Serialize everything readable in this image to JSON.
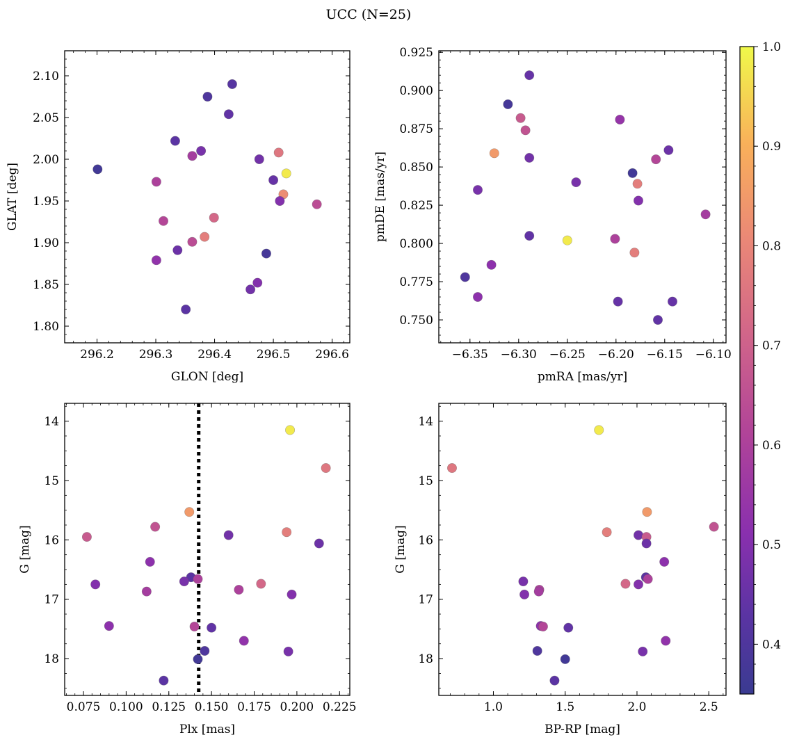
{
  "figure": {
    "suptitle": "UCC (N=25)"
  },
  "colorbar": {
    "min": 0.35,
    "max": 1.0,
    "colormap": "plasma",
    "ticks": [
      0.4,
      0.5,
      0.6,
      0.7,
      0.8,
      0.9,
      1.0
    ],
    "tick_labels": [
      "0.4",
      "0.5",
      "0.6",
      "0.7",
      "0.8",
      "0.9",
      "1.0"
    ]
  },
  "chart_data": [
    {
      "type": "scatter",
      "xlabel": "GLON [deg]",
      "ylabel": "GLAT [deg]",
      "xlim": [
        296.145,
        296.63
      ],
      "ylim": [
        1.78,
        2.13
      ],
      "y_inverted": false,
      "xticks": [
        296.2,
        296.3,
        296.4,
        296.5,
        296.6
      ],
      "xtick_labels": [
        "296.2",
        "296.3",
        "296.4",
        "296.5",
        "296.6"
      ],
      "yticks": [
        1.8,
        1.85,
        1.9,
        1.95,
        2.0,
        2.05,
        2.1
      ],
      "ytick_labels": [
        "1.80",
        "1.85",
        "1.90",
        "1.95",
        "2.00",
        "2.05",
        "2.10"
      ],
      "points": [
        {
          "x": 296.201,
          "y": 1.988,
          "c": 0.37
        },
        {
          "x": 296.388,
          "y": 2.075,
          "c": 0.4
        },
        {
          "x": 296.43,
          "y": 2.09,
          "c": 0.42
        },
        {
          "x": 296.424,
          "y": 2.054,
          "c": 0.44
        },
        {
          "x": 296.333,
          "y": 2.022,
          "c": 0.43
        },
        {
          "x": 296.377,
          "y": 2.01,
          "c": 0.48
        },
        {
          "x": 296.362,
          "y": 2.004,
          "c": 0.58
        },
        {
          "x": 296.476,
          "y": 2.0,
          "c": 0.47
        },
        {
          "x": 296.509,
          "y": 2.008,
          "c": 0.76
        },
        {
          "x": 296.522,
          "y": 1.983,
          "c": 0.98
        },
        {
          "x": 296.5,
          "y": 1.975,
          "c": 0.45
        },
        {
          "x": 296.517,
          "y": 1.958,
          "c": 0.82
        },
        {
          "x": 296.511,
          "y": 1.95,
          "c": 0.5
        },
        {
          "x": 296.574,
          "y": 1.946,
          "c": 0.64
        },
        {
          "x": 296.301,
          "y": 1.973,
          "c": 0.6
        },
        {
          "x": 296.399,
          "y": 1.93,
          "c": 0.72
        },
        {
          "x": 296.313,
          "y": 1.926,
          "c": 0.62
        },
        {
          "x": 296.383,
          "y": 1.907,
          "c": 0.78
        },
        {
          "x": 296.362,
          "y": 1.901,
          "c": 0.64
        },
        {
          "x": 296.337,
          "y": 1.891,
          "c": 0.46
        },
        {
          "x": 296.301,
          "y": 1.879,
          "c": 0.53
        },
        {
          "x": 296.488,
          "y": 1.887,
          "c": 0.38
        },
        {
          "x": 296.473,
          "y": 1.852,
          "c": 0.5
        },
        {
          "x": 296.461,
          "y": 1.844,
          "c": 0.47
        },
        {
          "x": 296.351,
          "y": 1.82,
          "c": 0.43
        }
      ]
    },
    {
      "type": "scatter",
      "xlabel": "pmRA [mas/yr]",
      "ylabel": "pmDE [mas/yr]",
      "xlim": [
        -6.382,
        -6.087
      ],
      "ylim": [
        0.735,
        0.926
      ],
      "y_inverted": false,
      "xticks": [
        -6.35,
        -6.3,
        -6.25,
        -6.2,
        -6.15,
        -6.1
      ],
      "xtick_labels": [
        "−6.35",
        "−6.30",
        "−6.25",
        "−6.20",
        "−6.15",
        "−6.10"
      ],
      "yticks": [
        0.75,
        0.775,
        0.8,
        0.825,
        0.85,
        0.875,
        0.9,
        0.925
      ],
      "ytick_labels": [
        "0.750",
        "0.775",
        "0.800",
        "0.825",
        "0.850",
        "0.875",
        "0.900",
        "0.925"
      ],
      "points": [
        {
          "x": -6.289,
          "y": 0.91,
          "c": 0.45
        },
        {
          "x": -6.311,
          "y": 0.891,
          "c": 0.38
        },
        {
          "x": -6.298,
          "y": 0.882,
          "c": 0.68
        },
        {
          "x": -6.293,
          "y": 0.874,
          "c": 0.66
        },
        {
          "x": -6.196,
          "y": 0.881,
          "c": 0.54
        },
        {
          "x": -6.325,
          "y": 0.859,
          "c": 0.85
        },
        {
          "x": -6.289,
          "y": 0.856,
          "c": 0.47
        },
        {
          "x": -6.146,
          "y": 0.861,
          "c": 0.46
        },
        {
          "x": -6.159,
          "y": 0.855,
          "c": 0.62
        },
        {
          "x": -6.183,
          "y": 0.846,
          "c": 0.37
        },
        {
          "x": -6.241,
          "y": 0.84,
          "c": 0.48
        },
        {
          "x": -6.178,
          "y": 0.839,
          "c": 0.78
        },
        {
          "x": -6.342,
          "y": 0.835,
          "c": 0.48
        },
        {
          "x": -6.177,
          "y": 0.828,
          "c": 0.5
        },
        {
          "x": -6.108,
          "y": 0.819,
          "c": 0.58
        },
        {
          "x": -6.289,
          "y": 0.805,
          "c": 0.44
        },
        {
          "x": -6.25,
          "y": 0.802,
          "c": 0.98
        },
        {
          "x": -6.201,
          "y": 0.803,
          "c": 0.6
        },
        {
          "x": -6.181,
          "y": 0.794,
          "c": 0.78
        },
        {
          "x": -6.328,
          "y": 0.786,
          "c": 0.52
        },
        {
          "x": -6.355,
          "y": 0.778,
          "c": 0.4
        },
        {
          "x": -6.342,
          "y": 0.765,
          "c": 0.52
        },
        {
          "x": -6.198,
          "y": 0.762,
          "c": 0.45
        },
        {
          "x": -6.142,
          "y": 0.762,
          "c": 0.45
        },
        {
          "x": -6.157,
          "y": 0.75,
          "c": 0.44
        }
      ]
    },
    {
      "type": "scatter",
      "xlabel": "Plx [mas]",
      "ylabel": "G [mag]",
      "xlim": [
        0.064,
        0.231
      ],
      "ylim": [
        13.7,
        18.62
      ],
      "y_inverted": true,
      "xticks": [
        0.075,
        0.1,
        0.125,
        0.15,
        0.175,
        0.2,
        0.225
      ],
      "xtick_labels": [
        "0.075",
        "0.100",
        "0.125",
        "0.150",
        "0.175",
        "0.200",
        "0.225"
      ],
      "yticks": [
        14,
        15,
        16,
        17,
        18
      ],
      "ytick_labels": [
        "14",
        "15",
        "16",
        "17",
        "18"
      ],
      "vline": {
        "x": 0.1425,
        "style": "dotted"
      },
      "points": [
        {
          "x": 0.196,
          "y": 14.15,
          "c": 0.98
        },
        {
          "x": 0.217,
          "y": 14.79,
          "c": 0.76
        },
        {
          "x": 0.137,
          "y": 15.53,
          "c": 0.85
        },
        {
          "x": 0.117,
          "y": 15.78,
          "c": 0.66
        },
        {
          "x": 0.194,
          "y": 15.87,
          "c": 0.78
        },
        {
          "x": 0.077,
          "y": 15.95,
          "c": 0.68
        },
        {
          "x": 0.16,
          "y": 15.92,
          "c": 0.47
        },
        {
          "x": 0.213,
          "y": 16.06,
          "c": 0.46
        },
        {
          "x": 0.114,
          "y": 16.37,
          "c": 0.52
        },
        {
          "x": 0.138,
          "y": 16.63,
          "c": 0.43
        },
        {
          "x": 0.142,
          "y": 16.66,
          "c": 0.6
        },
        {
          "x": 0.134,
          "y": 16.7,
          "c": 0.48
        },
        {
          "x": 0.082,
          "y": 16.75,
          "c": 0.5
        },
        {
          "x": 0.179,
          "y": 16.74,
          "c": 0.72
        },
        {
          "x": 0.166,
          "y": 16.84,
          "c": 0.6
        },
        {
          "x": 0.112,
          "y": 16.87,
          "c": 0.58
        },
        {
          "x": 0.197,
          "y": 16.92,
          "c": 0.5
        },
        {
          "x": 0.09,
          "y": 17.45,
          "c": 0.52
        },
        {
          "x": 0.14,
          "y": 17.46,
          "c": 0.62
        },
        {
          "x": 0.15,
          "y": 17.48,
          "c": 0.44
        },
        {
          "x": 0.169,
          "y": 17.7,
          "c": 0.53
        },
        {
          "x": 0.146,
          "y": 17.87,
          "c": 0.4
        },
        {
          "x": 0.195,
          "y": 17.88,
          "c": 0.48
        },
        {
          "x": 0.142,
          "y": 18.01,
          "c": 0.37
        },
        {
          "x": 0.122,
          "y": 18.37,
          "c": 0.43
        }
      ]
    },
    {
      "type": "scatter",
      "xlabel": "BP-RP [mag]",
      "ylabel": "G [mag]",
      "xlim": [
        0.62,
        2.62
      ],
      "ylim": [
        13.7,
        18.62
      ],
      "y_inverted": true,
      "xticks": [
        1.0,
        1.5,
        2.0,
        2.5
      ],
      "xtick_labels": [
        "1.0",
        "1.5",
        "2.0",
        "2.5"
      ],
      "yticks": [
        14,
        15,
        16,
        17,
        18
      ],
      "ytick_labels": [
        "14",
        "15",
        "16",
        "17",
        "18"
      ],
      "points": [
        {
          "x": 1.735,
          "y": 14.15,
          "c": 0.98
        },
        {
          "x": 0.712,
          "y": 14.79,
          "c": 0.76
        },
        {
          "x": 2.07,
          "y": 15.53,
          "c": 0.85
        },
        {
          "x": 2.536,
          "y": 15.78,
          "c": 0.66
        },
        {
          "x": 1.79,
          "y": 15.87,
          "c": 0.78
        },
        {
          "x": 2.01,
          "y": 15.92,
          "c": 0.47
        },
        {
          "x": 2.066,
          "y": 15.95,
          "c": 0.68
        },
        {
          "x": 2.066,
          "y": 16.06,
          "c": 0.46
        },
        {
          "x": 2.19,
          "y": 16.37,
          "c": 0.52
        },
        {
          "x": 2.062,
          "y": 16.63,
          "c": 0.43
        },
        {
          "x": 2.076,
          "y": 16.66,
          "c": 0.6
        },
        {
          "x": 1.208,
          "y": 16.7,
          "c": 0.48
        },
        {
          "x": 1.92,
          "y": 16.74,
          "c": 0.72
        },
        {
          "x": 2.01,
          "y": 16.75,
          "c": 0.5
        },
        {
          "x": 1.32,
          "y": 16.84,
          "c": 0.6
        },
        {
          "x": 1.316,
          "y": 16.87,
          "c": 0.58
        },
        {
          "x": 1.216,
          "y": 16.92,
          "c": 0.5
        },
        {
          "x": 1.33,
          "y": 17.45,
          "c": 0.52
        },
        {
          "x": 1.346,
          "y": 17.46,
          "c": 0.62
        },
        {
          "x": 1.522,
          "y": 17.48,
          "c": 0.44
        },
        {
          "x": 2.2,
          "y": 17.7,
          "c": 0.53
        },
        {
          "x": 1.306,
          "y": 17.87,
          "c": 0.4
        },
        {
          "x": 2.04,
          "y": 17.88,
          "c": 0.48
        },
        {
          "x": 1.5,
          "y": 18.01,
          "c": 0.37
        },
        {
          "x": 1.426,
          "y": 18.37,
          "c": 0.43
        }
      ]
    }
  ]
}
